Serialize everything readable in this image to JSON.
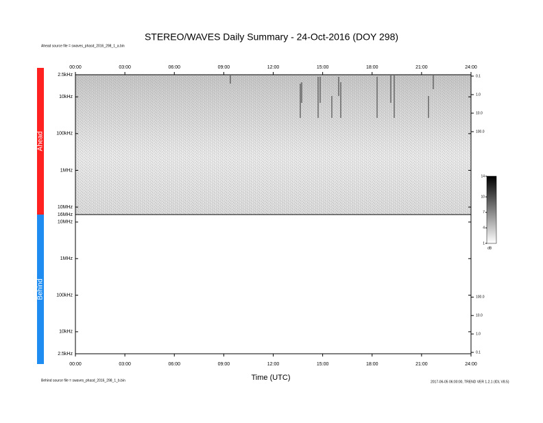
{
  "chart_data": {
    "type": "spectrogram",
    "title": "STEREO/WAVES Daily Summary - 24-Oct-2016 (DOY 298)",
    "x_label": "Time (UTC)",
    "xlim": [
      0,
      24
    ],
    "xticks": [
      {
        "value": 0,
        "label": "00:00"
      },
      {
        "value": 3,
        "label": "03:00"
      },
      {
        "value": 6,
        "label": "06:00"
      },
      {
        "value": 9,
        "label": "09:00"
      },
      {
        "value": 12,
        "label": "12:00"
      },
      {
        "value": 15,
        "label": "15:00"
      },
      {
        "value": 18,
        "label": "18:00"
      },
      {
        "value": 21,
        "label": "21:00"
      },
      {
        "value": 24,
        "label": "24:00"
      }
    ],
    "log_y": true,
    "panels": [
      {
        "name": "Ahead",
        "color": "#ff2020",
        "source_file": "Ahead source file = swaves_phasd_2016_298_1_a.bin",
        "ylim": [
          2500,
          16000000
        ],
        "yticks": [
          {
            "value": 2500,
            "label": "2.5kHz"
          },
          {
            "value": 10000,
            "label": "10kHz"
          },
          {
            "value": 100000,
            "label": "100kHz"
          },
          {
            "value": 1000000,
            "label": "1MHz"
          },
          {
            "value": 10000000,
            "label": "10MHz"
          },
          {
            "value": 16000000,
            "label": "16MHz"
          }
        ],
        "y2lim": [
          0.0843,
          3000000
        ],
        "y2ticks": [
          0.1,
          {
            "value": 1,
            "label": "1.0"
          },
          {
            "value": 10,
            "label": "10.0"
          },
          {
            "value": 100,
            "label": "100.0"
          }
        ]
      },
      {
        "name": "Behind",
        "color": "#1e8cf0",
        "source_file": "Behind source file = swaves_phasd_2016_298_1_b.bin",
        "ylim": [
          16000000,
          2500
        ],
        "yticks": [
          {
            "value": 10000000,
            "label": "10MHz"
          },
          {
            "value": 1000000,
            "label": "1MHz"
          },
          {
            "value": 100000,
            "label": "100kHz"
          },
          {
            "value": 10000,
            "label": "10kHz"
          },
          {
            "value": 2500,
            "label": "2.5kHz"
          }
        ],
        "y2lim": [
          3000000,
          0.0843
        ],
        "y2ticks": [
          {
            "value": 100,
            "label": "100.0"
          },
          {
            "value": 10,
            "label": "10.0"
          },
          {
            "value": 1,
            "label": "1.0"
          },
          0.1
        ]
      }
    ],
    "colorbar": {
      "label": "dB",
      "lim": [
        1,
        14
      ],
      "ticks": [
        1,
        4,
        7,
        10,
        14
      ]
    },
    "footer": "2017-06-05 06:00:00, TREND VER 1.2.1 (IDL V8.5)"
  }
}
